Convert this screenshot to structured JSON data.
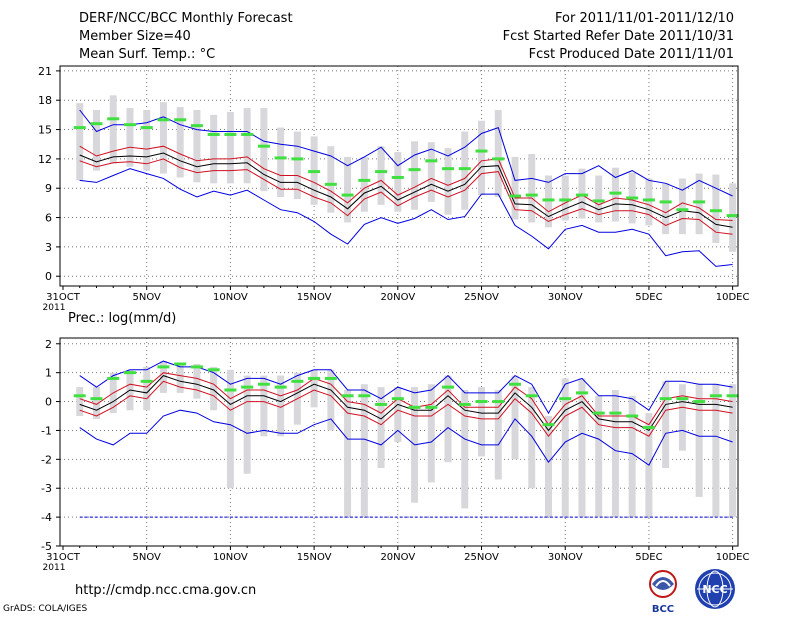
{
  "header": {
    "title": "DERF/NCC/BCC Monthly Forecast",
    "member_size": "Member Size=40",
    "variable": "Mean Surf. Temp.: °C",
    "forecast_period": "For 2011/11/01-2011/12/10",
    "start_date": "Fcst Started Refer Date 2011/10/31",
    "produced_date": "Fcst Produced Date 2011/11/01"
  },
  "footer": {
    "url": "http://cmdp.ncc.cma.gov.cn",
    "credit": "GrADS: COLA/IGES",
    "logo_bcc": "BCC",
    "logo_ncc": "NCC"
  },
  "colors": {
    "max_line": "#0000e0",
    "min_line": "#0000e0",
    "upper_line": "#d01020",
    "lower_line": "#d01020",
    "mean_line": "#000000",
    "observed": "#40e040",
    "spread_box": "#d8d8dc",
    "grid": "#777777"
  },
  "chart_data": [
    {
      "type": "line",
      "title": "Mean Surf. Temp.: °C",
      "xlabel": "",
      "ylabel": "",
      "x_ticks": [
        "31OCT\n2011",
        "5NOV",
        "10NOV",
        "15NOV",
        "20NOV",
        "25NOV",
        "30NOV",
        "5DEC",
        "10DEC"
      ],
      "x_tick_days": [
        0,
        5,
        10,
        15,
        20,
        25,
        30,
        35,
        40
      ],
      "ylim": [
        -1,
        21.5
      ],
      "yticks": [
        0,
        3,
        6,
        9,
        12,
        15,
        18,
        21
      ],
      "days": [
        1,
        2,
        3,
        4,
        5,
        6,
        7,
        8,
        9,
        10,
        11,
        12,
        13,
        14,
        15,
        16,
        17,
        18,
        19,
        20,
        21,
        22,
        23,
        24,
        25,
        26,
        27,
        28,
        29,
        30,
        31,
        32,
        33,
        34,
        35,
        36,
        37,
        38,
        39,
        40
      ],
      "series": [
        {
          "name": "max",
          "values": [
            17,
            14.8,
            15.5,
            15.5,
            15.7,
            16.3,
            15.5,
            15,
            14.8,
            14.8,
            14.8,
            13.8,
            13.5,
            13.3,
            12.8,
            12.3,
            11.3,
            12.2,
            13.2,
            11.3,
            12.4,
            13,
            12.3,
            13.2,
            14.6,
            15.2,
            9.8,
            10,
            9.6,
            10.5,
            10.5,
            11.3,
            10.1,
            10.8,
            9.8,
            9.5,
            8.8,
            9.8,
            9,
            8.2
          ]
        },
        {
          "name": "upper",
          "values": [
            13.3,
            12.3,
            12.8,
            13.2,
            13,
            13.3,
            12.5,
            11.8,
            12,
            12,
            12.2,
            11,
            10.3,
            10.3,
            9.6,
            8.7,
            7.5,
            9,
            9.8,
            8.3,
            9.1,
            10,
            9.3,
            10,
            11.8,
            12,
            8,
            8,
            6.6,
            7.5,
            8.3,
            7.3,
            8,
            7.8,
            7.3,
            6.5,
            7.5,
            7,
            5.8,
            5.7
          ]
        },
        {
          "name": "mean",
          "values": [
            12.4,
            11.7,
            12.2,
            12.3,
            12.2,
            12.6,
            11.8,
            11.2,
            11.5,
            11.5,
            11.6,
            10.4,
            9.6,
            9.6,
            8.8,
            8.1,
            6.9,
            8.5,
            9.2,
            7.8,
            8.6,
            9.4,
            8.7,
            9.4,
            11.2,
            11.3,
            7.4,
            7.3,
            6.1,
            6.9,
            7.6,
            6.8,
            7.4,
            7.3,
            6.8,
            6,
            6.7,
            6.5,
            5.3,
            5
          ]
        },
        {
          "name": "lower",
          "values": [
            11.8,
            11.2,
            11.6,
            11.7,
            11.5,
            12,
            11.1,
            10.6,
            10.8,
            10.8,
            10.9,
            9.9,
            8.9,
            8.9,
            8.1,
            7.5,
            6.2,
            7.9,
            8.6,
            7.2,
            8.1,
            8.8,
            8.1,
            8.8,
            10.5,
            10.7,
            6.8,
            6.7,
            5.6,
            6.3,
            6.9,
            6.3,
            6.7,
            6.7,
            6.3,
            5.2,
            5.9,
            5.8,
            4.5,
            4.3
          ]
        },
        {
          "name": "min",
          "values": [
            9.8,
            9.6,
            10.3,
            11,
            10.5,
            10,
            8.9,
            8.1,
            8.7,
            8.3,
            8.8,
            7.8,
            6.8,
            6.5,
            5.6,
            4.3,
            3.3,
            5.3,
            6,
            5.4,
            5.9,
            6.8,
            5.8,
            6.1,
            8.4,
            8.4,
            5.2,
            4.1,
            2.8,
            4.8,
            5.2,
            4.5,
            4.5,
            4.8,
            4.3,
            2.1,
            2.5,
            2.6,
            1,
            1.2
          ]
        },
        {
          "name": "observed",
          "values": [
            15.2,
            15.6,
            16.1,
            15.5,
            15.2,
            16,
            16,
            15.4,
            14.5,
            14.5,
            14.5,
            13.3,
            12.1,
            12,
            10.7,
            9.4,
            8.3,
            9.8,
            10.7,
            10.1,
            10.9,
            11.8,
            11,
            11,
            12.8,
            12,
            8.2,
            8.3,
            7.8,
            7.8,
            8.3,
            7.7,
            8.5,
            8,
            7.8,
            7.6,
            6.8,
            7.6,
            6.7,
            6.2
          ]
        }
      ],
      "spread": {
        "low": [
          9.8,
          10.8,
          11.5,
          11.2,
          10.8,
          10.5,
          10.1,
          9.6,
          9.5,
          9.5,
          9.5,
          8.7,
          8.1,
          7.9,
          7.3,
          6.5,
          5.5,
          6.6,
          7.3,
          6.6,
          6.8,
          7.6,
          6.3,
          6.8,
          8.3,
          8.1,
          5.8,
          5.5,
          5,
          5.7,
          5.9,
          5.5,
          5.6,
          5.4,
          5.2,
          4.3,
          4.3,
          4.3,
          3.4,
          2.5
        ],
        "high": [
          17.7,
          17,
          18.5,
          17.2,
          17,
          17.8,
          17.3,
          17,
          16.5,
          16.8,
          17.2,
          17.2,
          15.2,
          14.8,
          14.3,
          13.3,
          12.2,
          12.2,
          13.3,
          12.7,
          13.8,
          13.7,
          13.1,
          14.8,
          15.9,
          17,
          12.2,
          12.5,
          10.3,
          10.3,
          11,
          10.3,
          11.1,
          10.6,
          10,
          9.5,
          10,
          10.5,
          10.4,
          9.5
        ]
      },
      "floor_line": null
    },
    {
      "type": "line",
      "title": "Prec.: log(mm/d)",
      "xlabel": "",
      "ylabel": "",
      "x_ticks": [
        "31OCT\n2011",
        "5NOV",
        "10NOV",
        "15NOV",
        "20NOV",
        "25NOV",
        "30NOV",
        "5DEC",
        "10DEC"
      ],
      "x_tick_days": [
        0,
        5,
        10,
        15,
        20,
        25,
        30,
        35,
        40
      ],
      "ylim": [
        -5,
        2.2
      ],
      "yticks": [
        -5,
        -4,
        -3,
        -2,
        -1,
        0,
        1,
        2
      ],
      "days": [
        1,
        2,
        3,
        4,
        5,
        6,
        7,
        8,
        9,
        10,
        11,
        12,
        13,
        14,
        15,
        16,
        17,
        18,
        19,
        20,
        21,
        22,
        23,
        24,
        25,
        26,
        27,
        28,
        29,
        30,
        31,
        32,
        33,
        34,
        35,
        36,
        37,
        38,
        39,
        40
      ],
      "series": [
        {
          "name": "max",
          "values": [
            0.9,
            0.5,
            0.9,
            1.1,
            1.1,
            1.4,
            1.2,
            1.2,
            1,
            0.6,
            0.8,
            0.8,
            0.6,
            0.9,
            1.1,
            1.1,
            0.4,
            0.4,
            0.1,
            0.5,
            0.3,
            0.4,
            0.9,
            0.3,
            0.3,
            0.3,
            0.9,
            0.6,
            -0.4,
            0.6,
            0.8,
            0.2,
            0.2,
            0.1,
            -0.3,
            0.7,
            0.7,
            0.6,
            0.6,
            0.5
          ]
        },
        {
          "name": "upper",
          "values": [
            0.1,
            -0.1,
            0.3,
            0.6,
            0.5,
            1,
            0.9,
            0.8,
            0.6,
            0.1,
            0.4,
            0.4,
            0.2,
            0.4,
            0.8,
            0.6,
            0,
            -0.1,
            -0.4,
            0.1,
            -0.2,
            -0.1,
            0.4,
            -0.2,
            -0.2,
            -0.2,
            0.5,
            0.1,
            -0.8,
            -0.1,
            0.2,
            -0.5,
            -0.5,
            -0.5,
            -0.8,
            0.1,
            0.2,
            0.1,
            0.1,
            0
          ]
        },
        {
          "name": "mean",
          "values": [
            -0.1,
            -0.3,
            0,
            0.4,
            0.3,
            0.9,
            0.7,
            0.6,
            0.4,
            -0.1,
            0.2,
            0.2,
            0,
            0.3,
            0.6,
            0.4,
            -0.2,
            -0.3,
            -0.6,
            -0.1,
            -0.3,
            -0.3,
            0.2,
            -0.3,
            -0.4,
            -0.4,
            0.3,
            -0.2,
            -1,
            -0.3,
            0,
            -0.6,
            -0.7,
            -0.7,
            -1,
            -0.1,
            0,
            -0.1,
            -0.1,
            -0.2
          ]
        },
        {
          "name": "lower",
          "values": [
            -0.3,
            -0.5,
            -0.2,
            0.2,
            0.1,
            0.7,
            0.5,
            0.4,
            0.2,
            -0.3,
            0,
            0,
            -0.2,
            0.1,
            0.4,
            0.2,
            -0.4,
            -0.5,
            -0.8,
            -0.3,
            -0.5,
            -0.5,
            -0.1,
            -0.5,
            -0.6,
            -0.6,
            0.1,
            -0.4,
            -1.2,
            -0.5,
            -0.2,
            -0.8,
            -0.9,
            -0.9,
            -1.2,
            -0.3,
            -0.2,
            -0.3,
            -0.3,
            -0.4
          ]
        },
        {
          "name": "min",
          "values": [
            -0.9,
            -1.3,
            -1.5,
            -1.1,
            -1.1,
            -0.5,
            -0.3,
            -0.4,
            -0.7,
            -0.8,
            -1.1,
            -1,
            -1.1,
            -1.1,
            -0.8,
            -0.6,
            -1.3,
            -1.3,
            -1.5,
            -1,
            -1.5,
            -1.4,
            -0.9,
            -1.3,
            -1.5,
            -1.5,
            -0.6,
            -1.2,
            -2.1,
            -1.4,
            -1.1,
            -1.3,
            -1.7,
            -1.8,
            -2.2,
            -1.1,
            -1,
            -1.2,
            -1.2,
            -1.4
          ]
        },
        {
          "name": "observed",
          "values": [
            0.2,
            0.1,
            0.8,
            1,
            0.7,
            1.2,
            1.3,
            1.2,
            1.1,
            0.4,
            0.5,
            0.6,
            0.5,
            0.7,
            0.8,
            0.8,
            0.2,
            0.2,
            -0.1,
            0.1,
            -0.2,
            -0.2,
            0.5,
            -0.1,
            0,
            0,
            0.6,
            0.2,
            -0.8,
            0.1,
            0.3,
            -0.4,
            -0.4,
            -0.5,
            -0.9,
            0.1,
            0.1,
            0,
            0.2,
            0.2
          ]
        }
      ],
      "spread": {
        "low": [
          -0.5,
          -0.6,
          -0.4,
          -0.3,
          -0.3,
          0.3,
          0.3,
          0.1,
          -0.3,
          -3,
          -2.5,
          -1.2,
          -1.2,
          -0.8,
          -0.2,
          -1,
          -4,
          -4,
          -2.3,
          -1.4,
          -3.5,
          -2.8,
          -2.1,
          -3.7,
          -1.9,
          -2.7,
          -2,
          -3,
          -4,
          -4,
          -4,
          -4,
          -4,
          -4,
          -4,
          -2.3,
          -1.7,
          -3.3,
          -4,
          -4
        ],
        "high": [
          0.5,
          0.5,
          1,
          1.1,
          1.2,
          1.4,
          1.3,
          1.3,
          1.2,
          1.1,
          0.9,
          0.9,
          0.9,
          1,
          1.1,
          1.1,
          0.4,
          0.6,
          0.5,
          0.5,
          0.5,
          0.6,
          0.9,
          0.4,
          0.5,
          0.4,
          0.9,
          0.5,
          -0.5,
          0.8,
          0.8,
          0.2,
          0.4,
          0.2,
          -0.4,
          0.7,
          0.6,
          0.6,
          0.6,
          0.6
        ]
      },
      "floor_line": -4
    }
  ]
}
